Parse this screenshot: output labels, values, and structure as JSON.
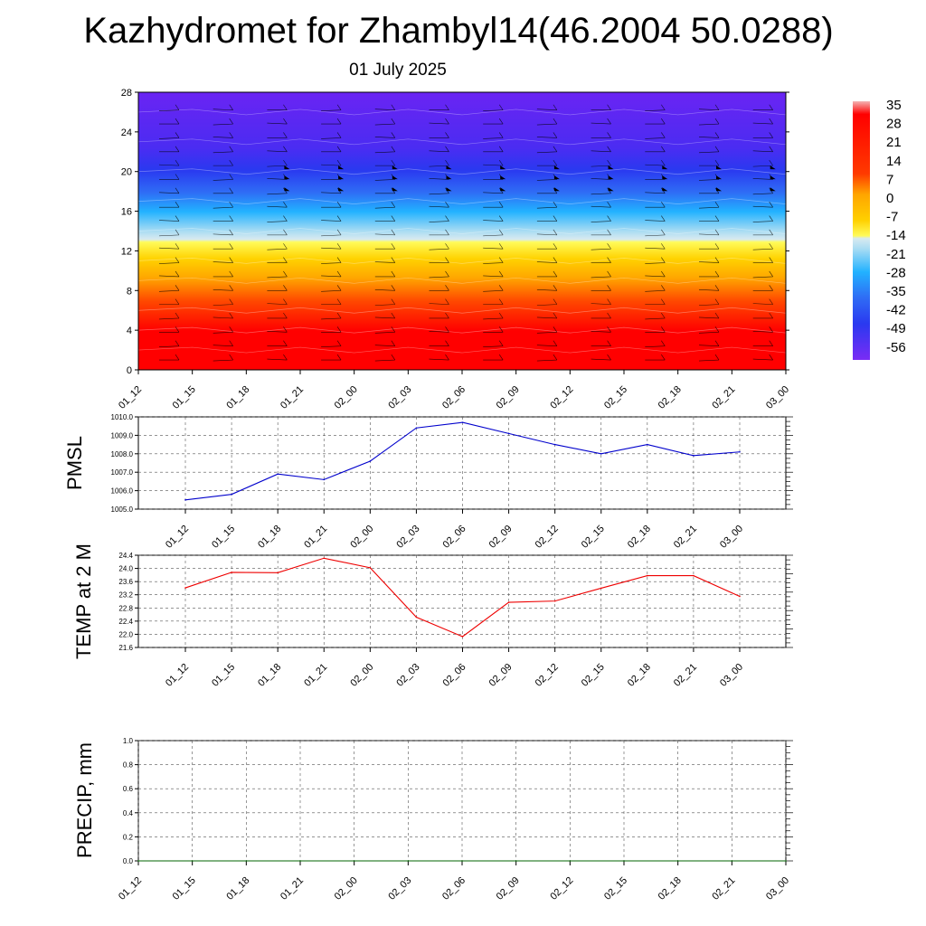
{
  "header": {
    "title": "Kazhydromet for Zhambyl14(46.2004 50.0288)",
    "subtitle": "01 July 2025"
  },
  "colorbar": {
    "labels": [
      "35",
      "28",
      "21",
      "14",
      "7",
      "0",
      "-7",
      "-14",
      "-21",
      "-28",
      "-35",
      "-42",
      "-49",
      "-56"
    ]
  },
  "chart_data": [
    {
      "type": "heatmap",
      "title": "",
      "x_tick_labels": [
        "01_12",
        "01_15",
        "01_18",
        "01_21",
        "02_00",
        "02_03",
        "02_06",
        "02_09",
        "02_12",
        "02_15",
        "02_18",
        "02_21",
        "03_00"
      ],
      "y_ticks": [
        0,
        4,
        8,
        12,
        16,
        20,
        24,
        28
      ],
      "ylim": [
        0,
        28
      ],
      "color_levels": [
        35,
        28,
        21,
        14,
        7,
        0,
        -7,
        -14,
        -21,
        -28,
        -35,
        -42,
        -49,
        -56
      ],
      "colors": {
        "hot": "#ff0000",
        "warm": "#ffa500",
        "zero": "#fffb5a",
        "cool": "#a9dcf3",
        "cyan": "#22b2ff",
        "blue": "#2a39f0",
        "violet": "#6a24f3"
      },
      "overlay": "wind barbs"
    },
    {
      "type": "line",
      "ylabel": "PMSL",
      "x": [
        "01_12",
        "01_15",
        "01_18",
        "01_21",
        "02_00",
        "02_03",
        "02_06",
        "02_09",
        "02_12",
        "02_15",
        "02_18",
        "02_21",
        "03_00"
      ],
      "series": [
        {
          "values": [
            1005.5,
            1005.8,
            1006.9,
            1006.6,
            1007.6,
            1009.4,
            1009.7,
            1009.1,
            1008.5,
            1008.0,
            1008.5,
            1007.9,
            1008.1
          ],
          "color": "#0000cc"
        }
      ],
      "ylim": [
        1005.0,
        1010.0
      ],
      "y_tick_labels": [
        "1005.0",
        "1006.0",
        "1007.0",
        "1008.0",
        "1009.0",
        "1010.0"
      ],
      "grid": true
    },
    {
      "type": "line",
      "ylabel": "TEMP at 2 M",
      "x": [
        "01_12",
        "01_15",
        "01_18",
        "01_21",
        "02_00",
        "02_03",
        "02_06",
        "02_09",
        "02_12",
        "02_15",
        "02_18",
        "02_21",
        "03_00"
      ],
      "series": [
        {
          "values": [
            23.41,
            23.88,
            23.87,
            24.31,
            24.02,
            22.52,
            21.93,
            22.97,
            23.01,
            23.4,
            23.78,
            23.78,
            23.15
          ],
          "color": "#ee0000"
        }
      ],
      "ylim": [
        21.6,
        24.4
      ],
      "y_tick_labels": [
        "21.6",
        "22.0",
        "22.4",
        "22.8",
        "23.2",
        "23.6",
        "24.0",
        "24.4"
      ],
      "grid": true
    },
    {
      "type": "line",
      "ylabel": "PRECIP, mm",
      "x": [
        "01_12",
        "01_15",
        "01_18",
        "01_21",
        "02_00",
        "02_03",
        "02_06",
        "02_09",
        "02_12",
        "02_15",
        "02_18",
        "02_21",
        "03_00"
      ],
      "series": [
        {
          "values": [
            0,
            0,
            0,
            0,
            0,
            0,
            0,
            0,
            0,
            0,
            0,
            0,
            0
          ],
          "color": "#006400"
        }
      ],
      "ylim": [
        0,
        1.0
      ],
      "y_tick_labels": [
        "0.0",
        "0.2",
        "0.4",
        "0.6",
        "0.8",
        "1.0"
      ],
      "grid": true
    }
  ]
}
